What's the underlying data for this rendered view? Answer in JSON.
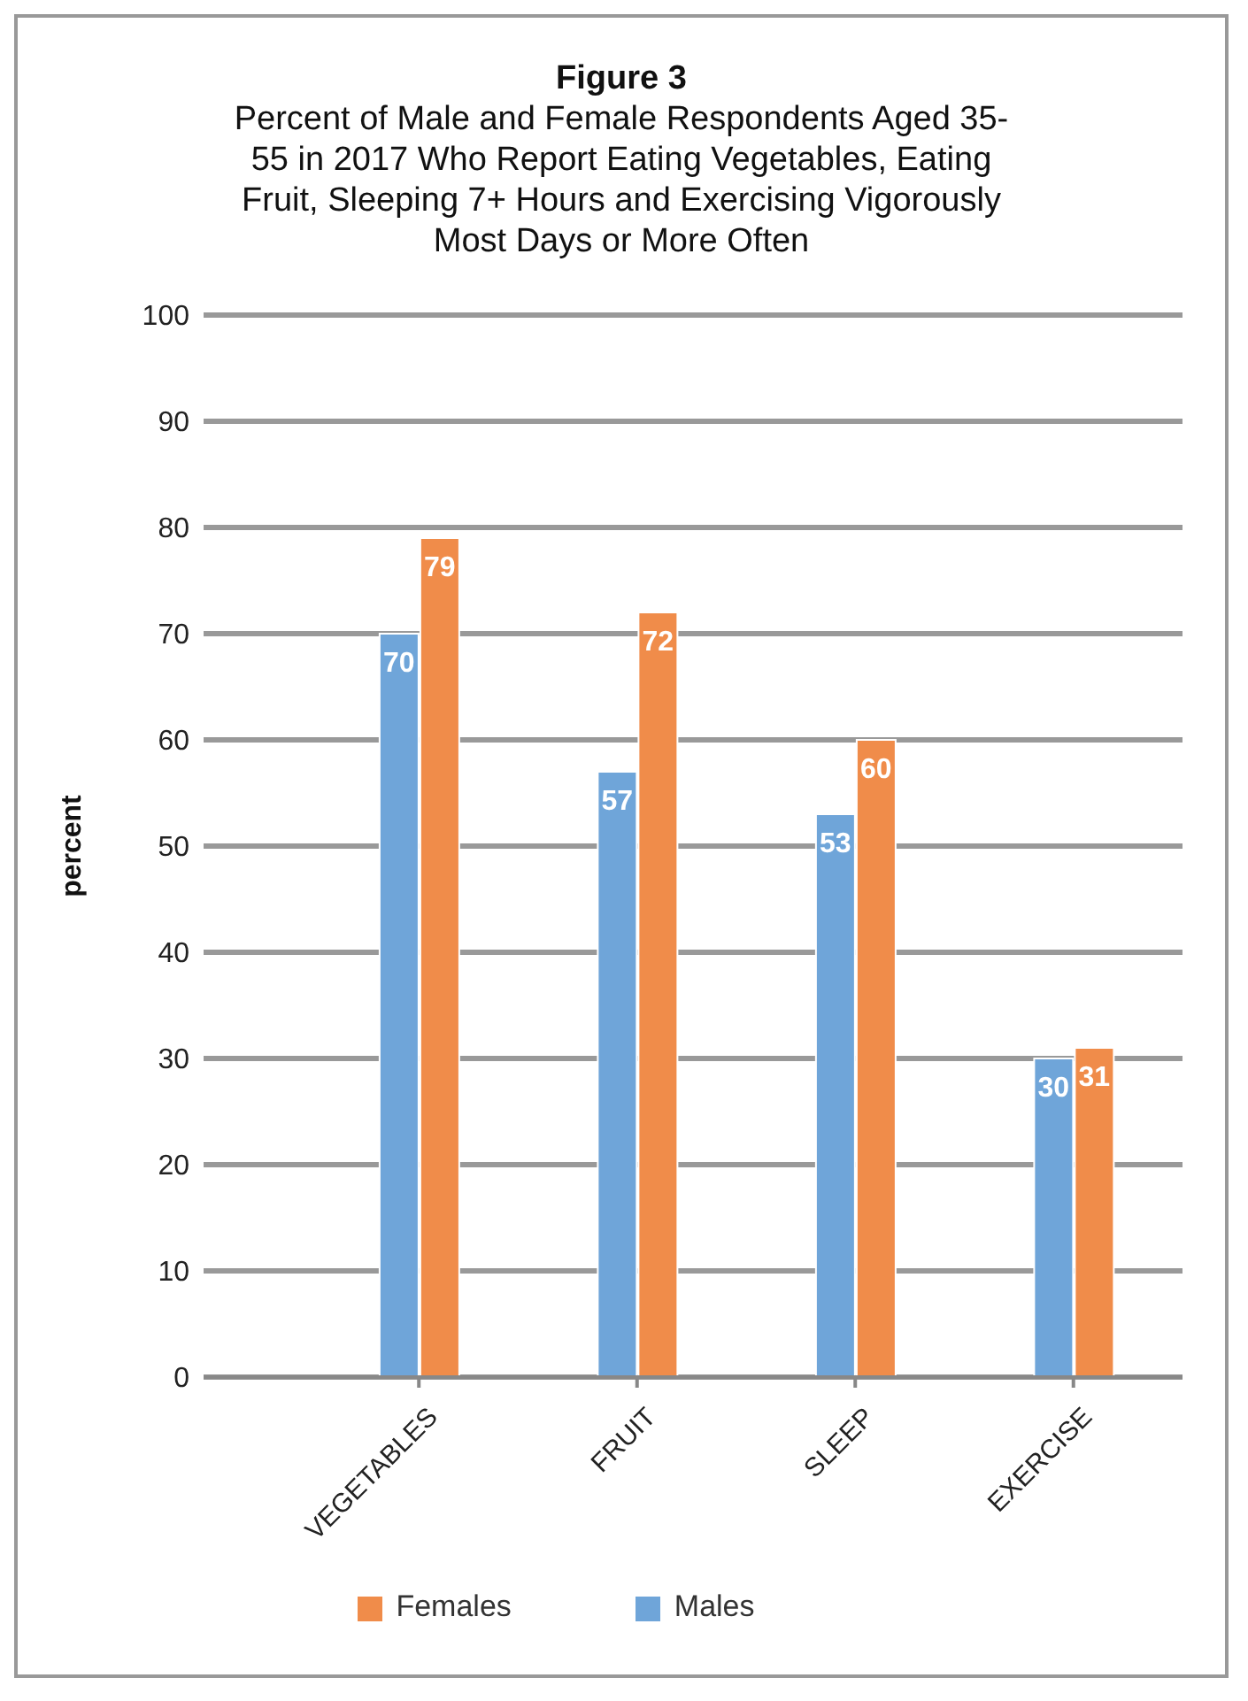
{
  "chart_data": {
    "type": "bar",
    "title": "Figure 3",
    "subtitle": "Percent of Male and Female Respondents Aged 35-55 in 2017 Who Report Eating Vegetables, Eating Fruit, Sleeping 7+ Hours and Exercising Vigorously Most Days or More Often",
    "ylabel": "percent",
    "categories": [
      "VEGETABLES",
      "FRUIT",
      "SLEEP",
      "EXERCISE"
    ],
    "series": [
      {
        "name": "Males",
        "color": "#6fa5d9",
        "values": [
          70,
          57,
          53,
          30
        ]
      },
      {
        "name": "Females",
        "color": "#f08c4a",
        "values": [
          79,
          72,
          60,
          31
        ]
      }
    ],
    "ylim": [
      0,
      100
    ],
    "yticks": [
      0,
      10,
      20,
      30,
      40,
      50,
      60,
      70,
      80,
      90,
      100
    ],
    "grid": "y",
    "legend": "bottom",
    "data_labels": true
  }
}
